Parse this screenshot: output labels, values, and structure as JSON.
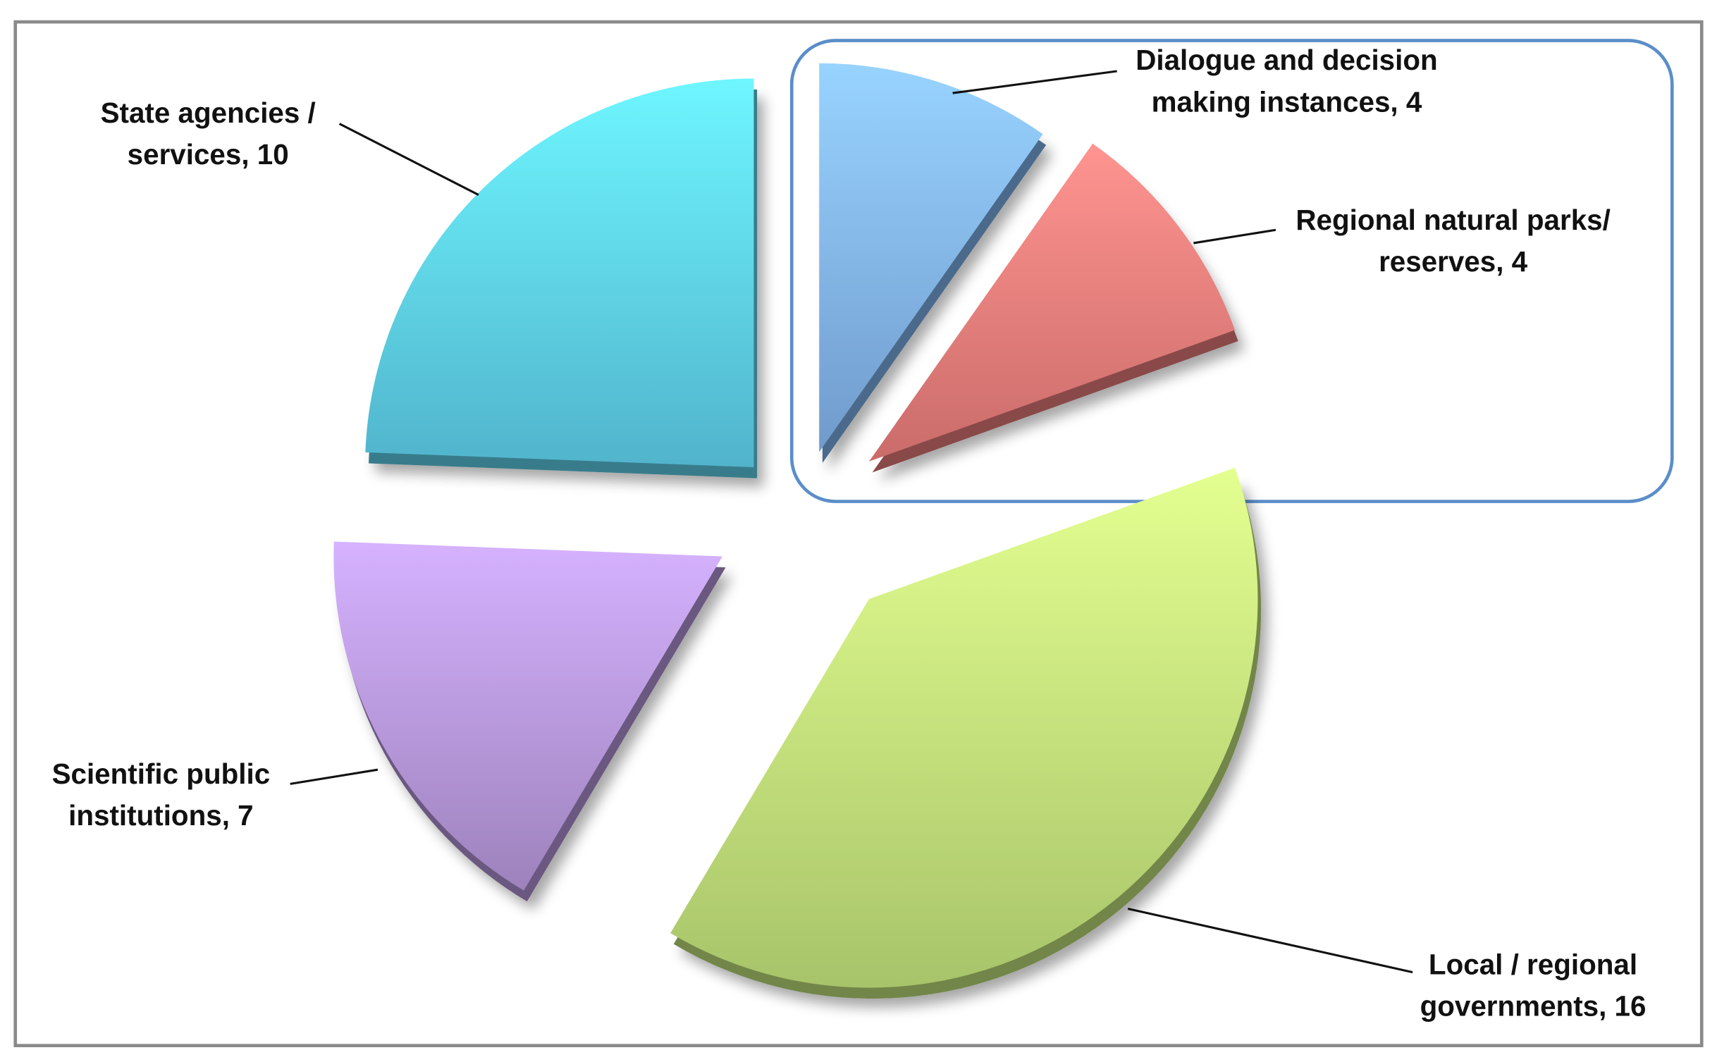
{
  "chart_data": {
    "type": "pie",
    "labels": [
      [
        "Dialogue and decision",
        "making instances, 4"
      ],
      [
        "Regional natural parks/",
        "reserves, 4"
      ],
      [
        "Local / regional",
        "governments, 16"
      ],
      [
        "Scientific public",
        "institutions, 7"
      ],
      [
        "State agencies /",
        "services, 10"
      ]
    ],
    "values": [
      4,
      4,
      16,
      7,
      10
    ],
    "colors": [
      "#7fb0e8",
      "#e57b78",
      "#bedf78",
      "#b294d6",
      "#5ccde8"
    ]
  }
}
